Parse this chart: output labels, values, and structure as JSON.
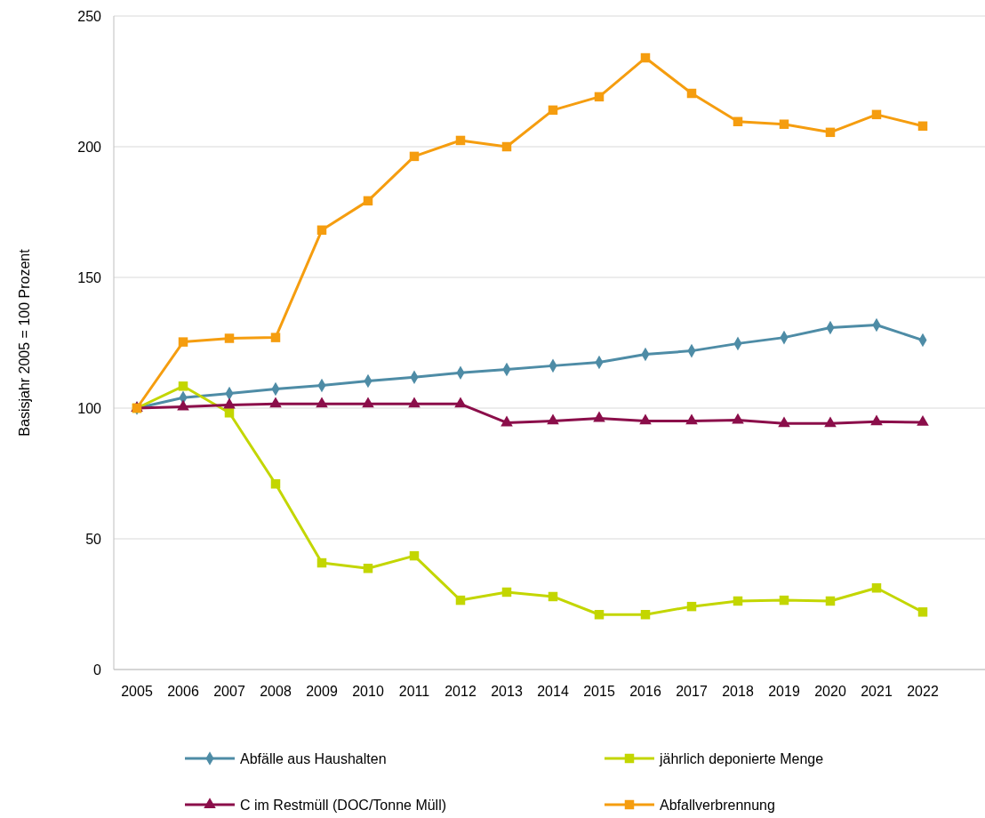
{
  "chart_data": {
    "type": "line",
    "ylabel": "Basisjahr 2005 = 100 Prozent",
    "categories": [
      "2005",
      "2006",
      "2007",
      "2008",
      "2009",
      "2010",
      "2011",
      "2012",
      "2013",
      "2014",
      "2015",
      "2016",
      "2017",
      "2018",
      "2019",
      "2020",
      "2021",
      "2022"
    ],
    "ylim": [
      0,
      250
    ],
    "yticks": [
      0,
      50,
      100,
      150,
      200,
      250
    ],
    "grid": "y",
    "legend": "bottom",
    "line_style": "solid",
    "series": [
      {
        "name": "Abfälle aus Haushalten",
        "color": "#4e8ca6",
        "marker": "diamond",
        "values": [
          100,
          104,
          105.6,
          107.3,
          108.7,
          110.4,
          111.8,
          113.5,
          114.8,
          116.2,
          117.5,
          120.6,
          121.9,
          124.7,
          127,
          130.8,
          131.8,
          126
        ]
      },
      {
        "name": "jährlich deponierte Menge",
        "color": "#c3d600",
        "marker": "square",
        "values": [
          100,
          108.4,
          98.2,
          71,
          40.8,
          38.7,
          43.5,
          26.5,
          29.6,
          27.9,
          21,
          21,
          24.1,
          26.2,
          26.5,
          26.2,
          31.2,
          22
        ]
      },
      {
        "name": "C im Restmüll (DOC/Tonne Müll)",
        "color": "#8b0e4a",
        "marker": "triangle",
        "values": [
          100,
          100.5,
          101.2,
          101.6,
          101.6,
          101.6,
          101.6,
          101.6,
          94.4,
          95.1,
          96.1,
          95.1,
          95.1,
          95.4,
          94.1,
          94.1,
          94.8,
          94.6
        ]
      },
      {
        "name": "Abfallverbrennung",
        "color": "#f59d0f",
        "marker": "square",
        "values": [
          100,
          125.3,
          126.7,
          127,
          168.1,
          179.3,
          196.3,
          202.4,
          200,
          214,
          219.1,
          234,
          220.4,
          209.6,
          208.6,
          205.5,
          212.3,
          207.9
        ]
      }
    ]
  }
}
